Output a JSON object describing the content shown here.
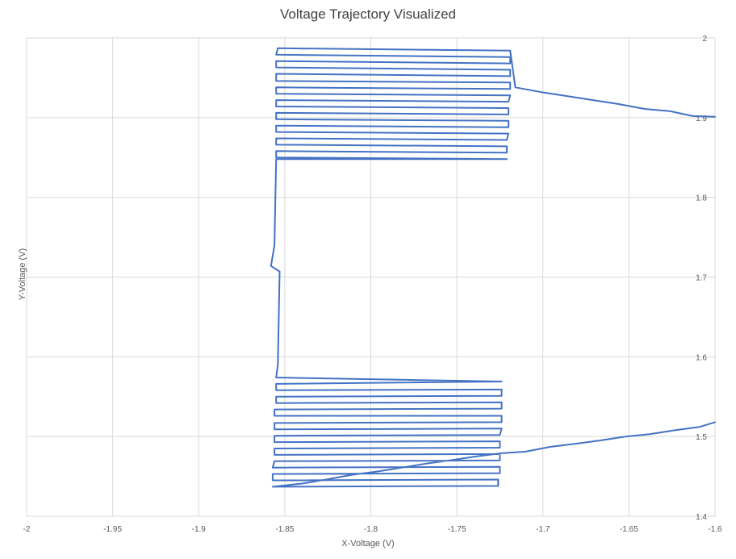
{
  "chart_data": {
    "type": "line",
    "title": "Voltage Trajectory Visualized",
    "xlabel": "X-Voltage (V)",
    "ylabel": "Y-Voltage (V)",
    "xlim": [
      -2,
      -1.6
    ],
    "ylim": [
      1.4,
      2.0
    ],
    "grid": true,
    "legend": "none",
    "x_ticks": [
      "-2",
      "-1.95",
      "-1.9",
      "-1.85",
      "-1.8",
      "-1.75",
      "-1.7",
      "-1.65",
      "-1.6"
    ],
    "y_ticks": [
      "1.4",
      "1.5",
      "1.6",
      "1.7",
      "1.8",
      "1.9",
      "2"
    ],
    "series": [
      {
        "color": "#4472c4",
        "points": [
          [
            -1.6,
            1.901
          ],
          [
            -1.613,
            1.902
          ],
          [
            -1.626,
            1.908
          ],
          [
            -1.641,
            1.911
          ],
          [
            -1.656,
            1.917
          ],
          [
            -1.671,
            1.922
          ],
          [
            -1.686,
            1.927
          ],
          [
            -1.701,
            1.932
          ],
          [
            -1.716,
            1.938
          ],
          [
            -1.719,
            1.984
          ],
          [
            -1.854,
            1.987
          ],
          [
            -1.855,
            1.979
          ],
          [
            -1.719,
            1.976
          ],
          [
            -1.719,
            1.968
          ],
          [
            -1.855,
            1.971
          ],
          [
            -1.855,
            1.963
          ],
          [
            -1.719,
            1.96
          ],
          [
            -1.719,
            1.952
          ],
          [
            -1.855,
            1.955
          ],
          [
            -1.855,
            1.946
          ],
          [
            -1.719,
            1.944
          ],
          [
            -1.719,
            1.936
          ],
          [
            -1.855,
            1.938
          ],
          [
            -1.855,
            1.93
          ],
          [
            -1.719,
            1.928
          ],
          [
            -1.72,
            1.92
          ],
          [
            -1.855,
            1.922
          ],
          [
            -1.855,
            1.914
          ],
          [
            -1.72,
            1.912
          ],
          [
            -1.72,
            1.904
          ],
          [
            -1.855,
            1.906
          ],
          [
            -1.855,
            1.898
          ],
          [
            -1.72,
            1.896
          ],
          [
            -1.72,
            1.888
          ],
          [
            -1.855,
            1.89
          ],
          [
            -1.855,
            1.882
          ],
          [
            -1.72,
            1.88
          ],
          [
            -1.721,
            1.872
          ],
          [
            -1.855,
            1.874
          ],
          [
            -1.855,
            1.866
          ],
          [
            -1.721,
            1.864
          ],
          [
            -1.721,
            1.856
          ],
          [
            -1.855,
            1.858
          ],
          [
            -1.855,
            1.85
          ],
          [
            -1.721,
            1.848
          ],
          [
            -1.855,
            1.848
          ],
          [
            -1.856,
            1.74
          ],
          [
            -1.858,
            1.714
          ],
          [
            -1.853,
            1.707
          ],
          [
            -1.854,
            1.59
          ],
          [
            -1.855,
            1.574
          ],
          [
            -1.724,
            1.569
          ],
          [
            -1.855,
            1.566
          ],
          [
            -1.855,
            1.558
          ],
          [
            -1.724,
            1.559
          ],
          [
            -1.724,
            1.551
          ],
          [
            -1.855,
            1.55
          ],
          [
            -1.855,
            1.542
          ],
          [
            -1.724,
            1.543
          ],
          [
            -1.724,
            1.535
          ],
          [
            -1.856,
            1.534
          ],
          [
            -1.856,
            1.526
          ],
          [
            -1.724,
            1.526
          ],
          [
            -1.724,
            1.518
          ],
          [
            -1.856,
            1.517
          ],
          [
            -1.856,
            1.509
          ],
          [
            -1.724,
            1.51
          ],
          [
            -1.725,
            1.502
          ],
          [
            -1.856,
            1.501
          ],
          [
            -1.856,
            1.493
          ],
          [
            -1.725,
            1.494
          ],
          [
            -1.725,
            1.486
          ],
          [
            -1.856,
            1.485
          ],
          [
            -1.856,
            1.477
          ],
          [
            -1.725,
            1.478
          ],
          [
            -1.725,
            1.47
          ],
          [
            -1.856,
            1.469
          ],
          [
            -1.857,
            1.461
          ],
          [
            -1.725,
            1.462
          ],
          [
            -1.725,
            1.454
          ],
          [
            -1.857,
            1.453
          ],
          [
            -1.857,
            1.445
          ],
          [
            -1.726,
            1.446
          ],
          [
            -1.726,
            1.438
          ],
          [
            -1.857,
            1.437
          ],
          [
            -1.84,
            1.441
          ],
          [
            -1.826,
            1.446
          ],
          [
            -1.811,
            1.452
          ],
          [
            -1.797,
            1.456
          ],
          [
            -1.782,
            1.461
          ],
          [
            -1.768,
            1.466
          ],
          [
            -1.754,
            1.47
          ],
          [
            -1.739,
            1.475
          ],
          [
            -1.724,
            1.479
          ],
          [
            -1.71,
            1.481
          ],
          [
            -1.696,
            1.487
          ],
          [
            -1.681,
            1.491
          ],
          [
            -1.667,
            1.495
          ],
          [
            -1.652,
            1.5
          ],
          [
            -1.638,
            1.503
          ],
          [
            -1.623,
            1.508
          ],
          [
            -1.609,
            1.512
          ],
          [
            -1.6,
            1.518
          ]
        ]
      }
    ]
  }
}
